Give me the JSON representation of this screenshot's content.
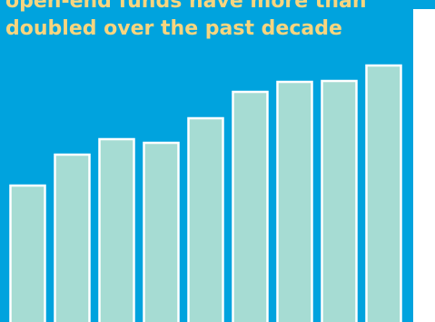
{
  "chart_data": {
    "type": "bar",
    "title": "open-end funds have more than doubled over the past decade",
    "values": [
      150,
      184,
      201,
      197,
      224,
      253,
      264,
      265,
      282
    ],
    "color": "#a6dcd3",
    "ylim": [
      0,
      300
    ]
  }
}
